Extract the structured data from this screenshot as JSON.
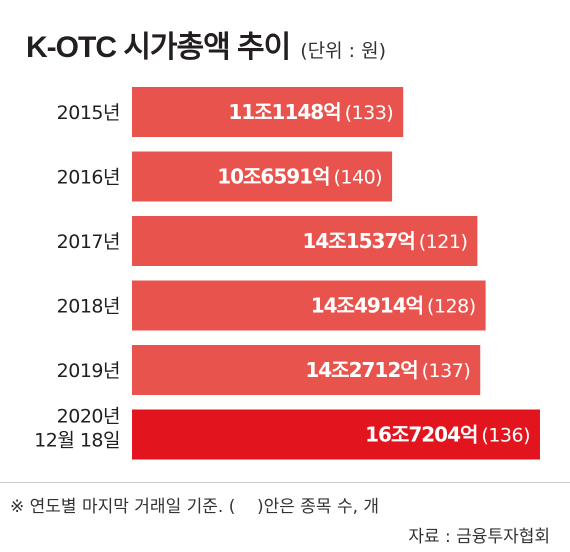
{
  "header": {
    "title": "K-OTC 시가총액 추이",
    "subtitle": "(단위 : 원)"
  },
  "colors": {
    "bar": "#e8534d",
    "bar_highlight": "#e2151f"
  },
  "chart_data": {
    "type": "bar",
    "orientation": "horizontal",
    "title": "K-OTC 시가총액 추이",
    "unit": "원",
    "categories": [
      "2015년",
      "2016년",
      "2017년",
      "2018년",
      "2019년",
      "2020년 12월 18일"
    ],
    "category_lines": [
      [
        "2015년"
      ],
      [
        "2016년"
      ],
      [
        "2017년"
      ],
      [
        "2018년"
      ],
      [
        "2019년"
      ],
      [
        "2020년",
        "12월 18일"
      ]
    ],
    "values": [
      111148,
      106591,
      141537,
      144914,
      142712,
      167204
    ],
    "value_unit": "억 원",
    "value_labels": [
      "11조1148억",
      "10조6591억",
      "14조1537억",
      "14조4914억",
      "14조2712억",
      "16조7204억"
    ],
    "count_labels": [
      "(133)",
      "(140)",
      "(121)",
      "(128)",
      "(137)",
      "(136)"
    ],
    "counts": [
      133,
      140,
      121,
      128,
      137,
      136
    ],
    "highlight_index": 5,
    "grid": false,
    "legend": "none"
  },
  "footer": {
    "note": "※ 연도별 마지막 거래일 기준. (    )안은 종목 수, 개",
    "source": "자료 : 금융투자협회"
  }
}
